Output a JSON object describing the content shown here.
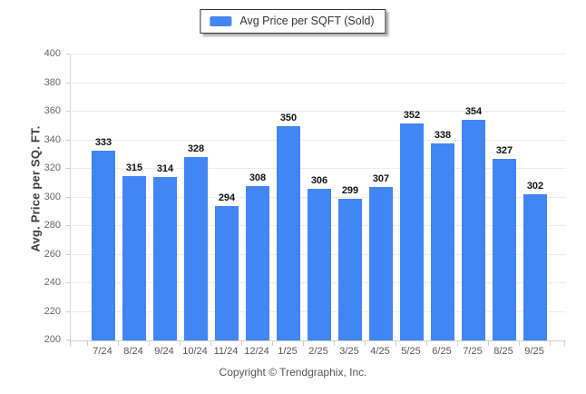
{
  "legend": {
    "label": "Avg Price per SQFT (Sold)"
  },
  "footer": {
    "text": "Copyright © Trendgraphix, Inc."
  },
  "chart_data": {
    "type": "bar",
    "title": "",
    "xlabel": "",
    "ylabel": "Avg. Price per SQ. FT.",
    "categories": [
      "7/24",
      "8/24",
      "9/24",
      "10/24",
      "11/24",
      "12/24",
      "1/25",
      "2/25",
      "3/25",
      "4/25",
      "5/25",
      "6/25",
      "7/25",
      "8/25",
      "9/25"
    ],
    "values": [
      333,
      315,
      314,
      328,
      294,
      308,
      350,
      306,
      299,
      307,
      352,
      338,
      354,
      327,
      302
    ],
    "series": [
      {
        "name": "Avg Price per SQFT (Sold)",
        "values": [
          333,
          315,
          314,
          328,
          294,
          308,
          350,
          306,
          299,
          307,
          352,
          338,
          354,
          327,
          302
        ]
      }
    ],
    "ylim": [
      200,
      400
    ],
    "yticks": [
      200,
      220,
      240,
      260,
      280,
      300,
      320,
      340,
      360,
      380,
      400
    ],
    "grid": true,
    "legend_position": "top-center",
    "bar_color": "#4285f4",
    "grid_color": "#ececec",
    "axis_color": "#cfcfcf",
    "tick_color": "#cccccc",
    "value_label_color": "#111111",
    "axis_label_color": "#666666"
  }
}
